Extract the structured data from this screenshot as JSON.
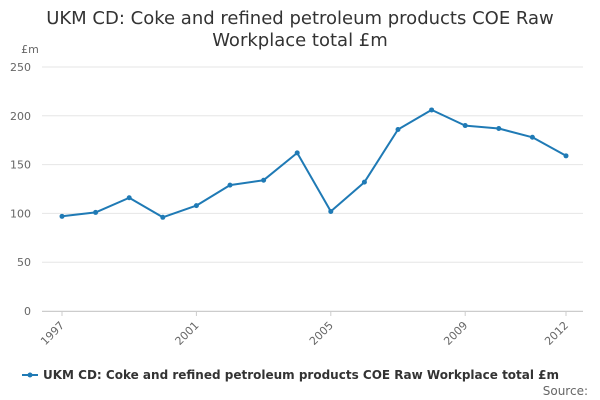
{
  "chart_data": {
    "type": "line",
    "title": "UKM CD: Coke and refined petroleum products COE Raw Workplace total £m",
    "ylabel": "£m",
    "ylim": [
      0,
      250
    ],
    "yticks": [
      0,
      50,
      100,
      150,
      200,
      250
    ],
    "xlim": [
      1997,
      2012
    ],
    "xticks": [
      "1997",
      "2001",
      "2005",
      "2009",
      "2012"
    ],
    "grid": true,
    "legend_position": "bottom",
    "colors": {
      "series": "#1f7ab5",
      "grid": "#e6e6e6"
    },
    "series": [
      {
        "name": "UKM CD: Coke and refined petroleum products COE Raw Workplace total £m",
        "x": [
          1997,
          1998,
          1999,
          2000,
          2001,
          2002,
          2003,
          2004,
          2005,
          2006,
          2007,
          2008,
          2009,
          2010,
          2011,
          2012
        ],
        "values": [
          97,
          101,
          116,
          96,
          108,
          129,
          134,
          162,
          102,
          132,
          186,
          206,
          190,
          187,
          178,
          159
        ]
      }
    ]
  },
  "source_label": "Source:"
}
